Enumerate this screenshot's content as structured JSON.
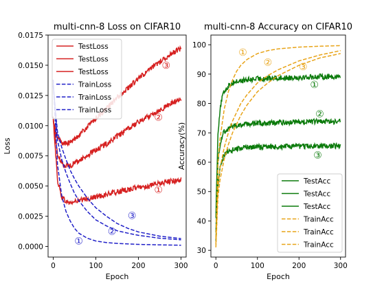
{
  "chart_data": [
    {
      "type": "line",
      "title": "multi-cnn-8 Loss on CIFAR10",
      "xlabel": "Epoch",
      "ylabel": "Loss",
      "xlim": [
        -12,
        312
      ],
      "ylim": [
        -0.00088,
        0.0175
      ],
      "xticks": [
        0,
        100,
        200,
        300
      ],
      "yticks": [
        0.0,
        0.0025,
        0.005,
        0.0075,
        0.01,
        0.0125,
        0.015,
        0.0175
      ],
      "ytick_labels": [
        "0.0000",
        "0.0025",
        "0.0050",
        "0.0075",
        "0.0100",
        "0.0125",
        "0.0150",
        "0.0175"
      ],
      "legend": "upper-left",
      "grid": false,
      "colors": {
        "test": "#d62020",
        "train": "#1f1fc8"
      },
      "series": [
        {
          "name": "TestLoss",
          "style": "solid",
          "color": "#d62020",
          "x": [
            0,
            10,
            20,
            30,
            40,
            50,
            75,
            100,
            125,
            150,
            175,
            200,
            225,
            250,
            275,
            300
          ],
          "y": [
            0.0107,
            0.0055,
            0.0041,
            0.0037,
            0.0036,
            0.0037,
            0.0039,
            0.0041,
            0.0043,
            0.0045,
            0.0047,
            0.0049,
            0.005,
            0.0052,
            0.0054,
            0.0055
          ]
        },
        {
          "name": "TestLoss",
          "style": "solid",
          "color": "#d62020",
          "x": [
            0,
            10,
            20,
            30,
            40,
            50,
            75,
            100,
            125,
            150,
            175,
            200,
            225,
            250,
            275,
            300
          ],
          "y": [
            0.0105,
            0.0076,
            0.0069,
            0.0067,
            0.0067,
            0.0069,
            0.0074,
            0.008,
            0.0085,
            0.0091,
            0.0097,
            0.0103,
            0.0108,
            0.0113,
            0.0118,
            0.0122
          ]
        },
        {
          "name": "TestLoss",
          "style": "solid",
          "color": "#d62020",
          "x": [
            0,
            10,
            20,
            30,
            40,
            50,
            75,
            100,
            125,
            150,
            175,
            200,
            225,
            250,
            275,
            300
          ],
          "y": [
            0.0103,
            0.009,
            0.0086,
            0.0085,
            0.0086,
            0.0089,
            0.0097,
            0.0106,
            0.0114,
            0.0123,
            0.0131,
            0.0139,
            0.0146,
            0.0153,
            0.0159,
            0.0164
          ]
        },
        {
          "name": "TrainLoss",
          "style": "dashed",
          "color": "#1f1fc8",
          "x": [
            0,
            10,
            20,
            30,
            40,
            50,
            60,
            80,
            100,
            125,
            150,
            175,
            200,
            250,
            300
          ],
          "y": [
            0.0138,
            0.0068,
            0.0042,
            0.0029,
            0.0021,
            0.0015,
            0.0011,
            0.00068,
            0.00045,
            0.00032,
            0.00025,
            0.00021,
            0.00017,
            0.00013,
            0.0001
          ]
        },
        {
          "name": "TrainLoss",
          "style": "dashed",
          "color": "#1f1fc8",
          "x": [
            0,
            10,
            20,
            30,
            40,
            50,
            60,
            80,
            100,
            125,
            150,
            175,
            200,
            250,
            300
          ],
          "y": [
            0.0135,
            0.0088,
            0.0072,
            0.0061,
            0.0052,
            0.0044,
            0.0038,
            0.0029,
            0.0022,
            0.0017,
            0.0013,
            0.0011,
            0.00092,
            0.00068,
            0.00055
          ]
        },
        {
          "name": "TrainLoss",
          "style": "dashed",
          "color": "#1f1fc8",
          "x": [
            0,
            10,
            20,
            30,
            40,
            50,
            60,
            80,
            100,
            125,
            150,
            175,
            200,
            250,
            300
          ],
          "y": [
            0.0133,
            0.0095,
            0.0082,
            0.0072,
            0.0063,
            0.0056,
            0.005,
            0.004,
            0.0032,
            0.0025,
            0.0019,
            0.0015,
            0.0012,
            0.00085,
            0.00065
          ]
        }
      ],
      "annotations": [
        {
          "text": "①",
          "x": 60,
          "y": 0.00045,
          "color": "#1f1fc8"
        },
        {
          "text": "②",
          "x": 138,
          "y": 0.00125,
          "color": "#1f1fc8"
        },
        {
          "text": "③",
          "x": 185,
          "y": 0.00255,
          "color": "#1f1fc8"
        },
        {
          "text": "①",
          "x": 247,
          "y": 0.0047,
          "color": "#d62020"
        },
        {
          "text": "②",
          "x": 247,
          "y": 0.0107,
          "color": "#d62020"
        },
        {
          "text": "③",
          "x": 265,
          "y": 0.015,
          "color": "#d62020"
        }
      ]
    },
    {
      "type": "line",
      "title": "multi-cnn-8 Accuracy on CIFAR10",
      "xlabel": "Epoch",
      "ylabel": "Accuracy(%)",
      "xlim": [
        -12,
        312
      ],
      "ylim": [
        27.7,
        103.3
      ],
      "xticks": [
        0,
        100,
        200,
        300
      ],
      "yticks": [
        30,
        40,
        50,
        60,
        70,
        80,
        90,
        100
      ],
      "ytick_labels": [
        "30",
        "40",
        "50",
        "60",
        "70",
        "80",
        "90",
        "100"
      ],
      "legend": "lower-right",
      "grid": false,
      "colors": {
        "test": "#0a7a0a",
        "train": "#e8a317"
      },
      "series": [
        {
          "name": "TestAcc",
          "style": "solid",
          "color": "#0a7a0a",
          "x": [
            0,
            5,
            10,
            15,
            20,
            30,
            40,
            50,
            75,
            100,
            150,
            200,
            250,
            300
          ],
          "y": [
            42,
            70,
            78,
            82,
            84,
            86,
            87,
            87.5,
            88,
            88.4,
            88.7,
            88.9,
            89.1,
            89.2
          ]
        },
        {
          "name": "TestAcc",
          "style": "solid",
          "color": "#0a7a0a",
          "x": [
            0,
            5,
            10,
            15,
            20,
            30,
            40,
            50,
            75,
            100,
            150,
            200,
            250,
            300
          ],
          "y": [
            37,
            60,
            66,
            69,
            70.5,
            71.5,
            72.2,
            72.6,
            73,
            73.3,
            73.5,
            73.7,
            73.8,
            73.9
          ]
        },
        {
          "name": "TestAcc",
          "style": "solid",
          "color": "#0a7a0a",
          "x": [
            0,
            5,
            10,
            15,
            20,
            30,
            40,
            50,
            75,
            100,
            150,
            200,
            250,
            300
          ],
          "y": [
            34,
            52,
            58,
            61,
            62.5,
            63.5,
            64.2,
            64.6,
            65,
            65.2,
            65.3,
            65.4,
            65.5,
            65.6
          ]
        },
        {
          "name": "TrainAcc",
          "style": "dashed",
          "color": "#e8a317",
          "x": [
            0,
            5,
            10,
            20,
            30,
            40,
            50,
            60,
            75,
            100,
            125,
            150,
            200,
            250,
            300
          ],
          "y": [
            34,
            60,
            68,
            78,
            84,
            88,
            91,
            93,
            95,
            97,
            98,
            98.6,
            99.2,
            99.5,
            99.7
          ]
        },
        {
          "name": "TrainAcc",
          "style": "dashed",
          "color": "#e8a317",
          "x": [
            0,
            5,
            10,
            20,
            30,
            40,
            50,
            60,
            75,
            100,
            125,
            150,
            200,
            250,
            300
          ],
          "y": [
            32,
            52,
            58,
            65,
            70,
            74,
            77,
            80,
            83,
            87,
            89.5,
            91.5,
            94.5,
            96.5,
            98
          ]
        },
        {
          "name": "TrainAcc",
          "style": "dashed",
          "color": "#e8a317",
          "x": [
            0,
            5,
            10,
            20,
            30,
            40,
            50,
            60,
            75,
            100,
            125,
            150,
            200,
            250,
            300
          ],
          "y": [
            31,
            48,
            54,
            61,
            66,
            70,
            73,
            76,
            79.5,
            84,
            87,
            89.5,
            93,
            95.5,
            97
          ]
        }
      ],
      "annotations": [
        {
          "text": "①",
          "x": 237,
          "y": 86.5,
          "color": "#0a7a0a"
        },
        {
          "text": "②",
          "x": 250,
          "y": 76.5,
          "color": "#0a7a0a"
        },
        {
          "text": "③",
          "x": 245,
          "y": 62.5,
          "color": "#0a7a0a"
        },
        {
          "text": "①",
          "x": 65,
          "y": 97.5,
          "color": "#e8a317"
        },
        {
          "text": "②",
          "x": 125,
          "y": 94,
          "color": "#e8a317"
        },
        {
          "text": "③",
          "x": 210,
          "y": 92.5,
          "color": "#e8a317"
        }
      ]
    }
  ]
}
